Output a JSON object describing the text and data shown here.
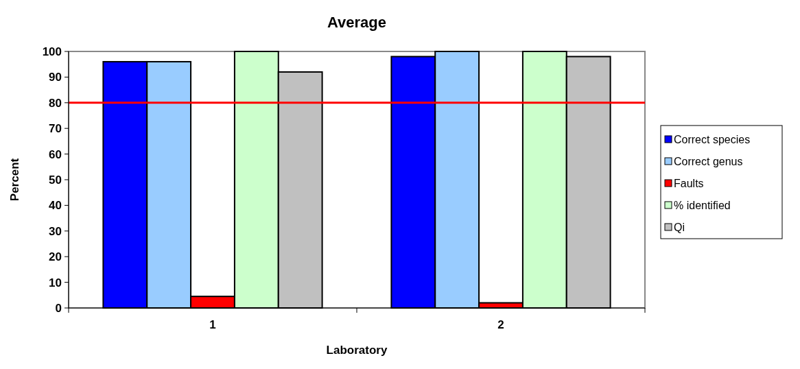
{
  "chart_data": {
    "type": "bar",
    "title": "Average",
    "xlabel": "Laboratory",
    "ylabel": "Percent",
    "categories": [
      "1",
      "2"
    ],
    "series": [
      {
        "name": "Correct species",
        "color": "#0000ff",
        "values": [
          96,
          98
        ]
      },
      {
        "name": "Correct genus",
        "color": "#99ccff",
        "values": [
          96,
          100
        ]
      },
      {
        "name": "Faults",
        "color": "#ff0000",
        "values": [
          4.5,
          2
        ]
      },
      {
        "name": "% identified",
        "color": "#ccffcc",
        "values": [
          100,
          100
        ]
      },
      {
        "name": "Qi",
        "color": "#c0c0c0",
        "values": [
          92,
          98
        ]
      }
    ],
    "ylim": [
      0,
      100
    ],
    "yticks": [
      0,
      10,
      20,
      30,
      40,
      50,
      60,
      70,
      80,
      90,
      100
    ],
    "grid": false,
    "legend": "right",
    "ref_lines": [
      {
        "axis": "y",
        "value": 80,
        "color": "#ff0000"
      }
    ]
  }
}
